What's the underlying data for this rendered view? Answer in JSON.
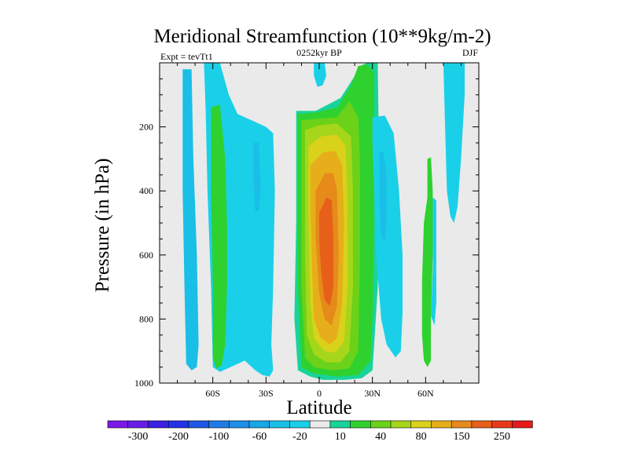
{
  "chart_data": {
    "type": "heatmap",
    "title": "Meridional Streamfunction (10**9kg/m-2)",
    "subtitle_left": "Expt = tevTt1",
    "subtitle_center": "0252kyr BP",
    "subtitle_right": "DJF",
    "xlabel": "Latitude",
    "ylabel": "Pressure (in hPa)",
    "xlim": [
      -90,
      90
    ],
    "ylim": [
      0,
      1000
    ],
    "x_ticks": [
      {
        "value": -60,
        "label": "60S"
      },
      {
        "value": -30,
        "label": "30S"
      },
      {
        "value": 0,
        "label": "0"
      },
      {
        "value": 30,
        "label": "30N"
      },
      {
        "value": 60,
        "label": "60N"
      }
    ],
    "y_ticks": [
      {
        "value": 200,
        "label": "200"
      },
      {
        "value": 400,
        "label": "400"
      },
      {
        "value": 600,
        "label": "600"
      },
      {
        "value": 800,
        "label": "800"
      },
      {
        "value": 1000,
        "label": "1000"
      }
    ],
    "levels": [
      -300,
      -250,
      -200,
      -150,
      -100,
      -80,
      -60,
      -40,
      -20,
      -10,
      10,
      20,
      40,
      60,
      80,
      100,
      150,
      200,
      250,
      300
    ],
    "colorbar_labels": [
      "-300",
      "-200",
      "-100",
      "-60",
      "-20",
      "10",
      "40",
      "80",
      "150",
      "250"
    ],
    "colors": [
      "#7b1ae6",
      "#6a1de6",
      "#3d1fe6",
      "#2233e6",
      "#1e56e6",
      "#1f7ae6",
      "#1e8ee6",
      "#19a7e6",
      "#19bfe6",
      "#1ad0e8",
      "#eaeaea",
      "#19d39a",
      "#2fd12f",
      "#6bd119",
      "#a6d61a",
      "#d9d11a",
      "#e6ae1a",
      "#e68a1a",
      "#e6601a",
      "#e63a1a",
      "#e61a1a"
    ],
    "background_color": "#eaeaea",
    "fields": [
      {
        "name": "sh-high-lat-cell",
        "level": -20,
        "points": [
          [
            -77,
            20
          ],
          [
            -72,
            20
          ],
          [
            -71,
            300
          ],
          [
            -69,
            600
          ],
          [
            -68,
            880
          ],
          [
            -69,
            950
          ],
          [
            -72,
            960
          ],
          [
            -75,
            940
          ],
          [
            -76,
            700
          ],
          [
            -77,
            400
          ]
        ]
      },
      {
        "name": "sh-mid-cell-outer",
        "level": -10,
        "points": [
          [
            -65,
            0
          ],
          [
            -56,
            0
          ],
          [
            -51,
            100
          ],
          [
            -46,
            160
          ],
          [
            -38,
            180
          ],
          [
            -30,
            200
          ],
          [
            -26,
            220
          ],
          [
            -25,
            400
          ],
          [
            -26,
            700
          ],
          [
            -27,
            880
          ],
          [
            -26,
            960
          ],
          [
            -28,
            980
          ],
          [
            -32,
            975
          ],
          [
            -36,
            960
          ],
          [
            -42,
            930
          ],
          [
            -50,
            950
          ],
          [
            -56,
            965
          ],
          [
            -60,
            950
          ],
          [
            -61,
            700
          ],
          [
            -63,
            400
          ],
          [
            -64,
            150
          ]
        ]
      },
      {
        "name": "sh-mid-cell-core",
        "level": 20,
        "points": [
          [
            -61,
            140
          ],
          [
            -56,
            130
          ],
          [
            -53,
            300
          ],
          [
            -52,
            500
          ],
          [
            -52,
            700
          ],
          [
            -53,
            880
          ],
          [
            -55,
            945
          ],
          [
            -58,
            955
          ],
          [
            -60,
            920
          ],
          [
            -60,
            700
          ],
          [
            -61,
            400
          ]
        ]
      },
      {
        "name": "sh-mid-cell-spot",
        "level": -20,
        "points": [
          [
            -37,
            250
          ],
          [
            -34,
            245
          ],
          [
            -33,
            400
          ],
          [
            -34,
            460
          ],
          [
            -36,
            465
          ],
          [
            -37,
            380
          ]
        ]
      },
      {
        "name": "hadley-10",
        "level": 10,
        "points": [
          [
            -13,
            150
          ],
          [
            -2,
            150
          ],
          [
            12,
            110
          ],
          [
            19,
            50
          ],
          [
            23,
            10
          ],
          [
            27,
            0
          ],
          [
            33,
            0
          ],
          [
            34,
            400
          ],
          [
            33,
            700
          ],
          [
            31,
            880
          ],
          [
            30,
            960
          ],
          [
            24,
            985
          ],
          [
            14,
            990
          ],
          [
            2,
            990
          ],
          [
            -5,
            980
          ],
          [
            -12,
            960
          ],
          [
            -14,
            800
          ],
          [
            -13,
            500
          ]
        ]
      },
      {
        "name": "hadley-20",
        "level": 20,
        "points": [
          [
            -12,
            160
          ],
          [
            -2,
            155
          ],
          [
            10,
            140
          ],
          [
            18,
            70
          ],
          [
            22,
            10
          ],
          [
            27,
            5
          ],
          [
            31,
            30
          ],
          [
            31,
            250
          ],
          [
            31,
            500
          ],
          [
            30,
            800
          ],
          [
            29,
            930
          ],
          [
            22,
            975
          ],
          [
            10,
            980
          ],
          [
            -3,
            970
          ],
          [
            -10,
            950
          ],
          [
            -12,
            700
          ],
          [
            -12,
            400
          ]
        ]
      },
      {
        "name": "hadley-40",
        "level": 40,
        "points": [
          [
            -10,
            180
          ],
          [
            -2,
            175
          ],
          [
            10,
            170
          ],
          [
            17,
            120
          ],
          [
            22,
            170
          ],
          [
            23,
            300
          ],
          [
            23,
            600
          ],
          [
            22,
            900
          ],
          [
            17,
            955
          ],
          [
            7,
            960
          ],
          [
            -3,
            950
          ],
          [
            -8,
            920
          ],
          [
            -10,
            700
          ],
          [
            -10,
            400
          ]
        ]
      },
      {
        "name": "hadley-60",
        "level": 60,
        "points": [
          [
            -8,
            210
          ],
          [
            0,
            195
          ],
          [
            10,
            190
          ],
          [
            18,
            230
          ],
          [
            19,
            400
          ],
          [
            19,
            700
          ],
          [
            17,
            900
          ],
          [
            12,
            935
          ],
          [
            4,
            935
          ],
          [
            -3,
            910
          ],
          [
            -7,
            850
          ],
          [
            -8,
            600
          ],
          [
            -8,
            350
          ]
        ]
      },
      {
        "name": "hadley-80",
        "level": 80,
        "points": [
          [
            -6,
            260
          ],
          [
            1,
            230
          ],
          [
            10,
            225
          ],
          [
            15,
            260
          ],
          [
            16,
            450
          ],
          [
            16,
            700
          ],
          [
            14,
            870
          ],
          [
            9,
            905
          ],
          [
            3,
            900
          ],
          [
            -3,
            860
          ],
          [
            -5,
            750
          ],
          [
            -6,
            500
          ]
        ]
      },
      {
        "name": "hadley-100",
        "level": 100,
        "points": [
          [
            -5,
            320
          ],
          [
            2,
            280
          ],
          [
            9,
            275
          ],
          [
            13,
            320
          ],
          [
            14,
            500
          ],
          [
            13,
            750
          ],
          [
            10,
            860
          ],
          [
            6,
            880
          ],
          [
            1,
            860
          ],
          [
            -3,
            800
          ],
          [
            -4,
            650
          ],
          [
            -5,
            450
          ]
        ]
      },
      {
        "name": "hadley-150",
        "level": 150,
        "points": [
          [
            -2,
            400
          ],
          [
            3,
            345
          ],
          [
            8,
            345
          ],
          [
            10,
            400
          ],
          [
            11,
            600
          ],
          [
            10,
            760
          ],
          [
            7,
            820
          ],
          [
            3,
            800
          ],
          [
            0,
            720
          ],
          [
            -2,
            550
          ]
        ]
      },
      {
        "name": "hadley-200",
        "level": 200,
        "points": [
          [
            0,
            470
          ],
          [
            4,
            420
          ],
          [
            7,
            430
          ],
          [
            8,
            550
          ],
          [
            8,
            700
          ],
          [
            6,
            760
          ],
          [
            3,
            740
          ],
          [
            1,
            650
          ],
          [
            0,
            550
          ]
        ]
      },
      {
        "name": "nh-subtropic-outer",
        "level": -10,
        "points": [
          [
            30,
            170
          ],
          [
            37,
            165
          ],
          [
            42,
            220
          ],
          [
            45,
            400
          ],
          [
            47,
            600
          ],
          [
            47,
            780
          ],
          [
            46,
            900
          ],
          [
            43,
            920
          ],
          [
            38,
            880
          ],
          [
            35,
            800
          ],
          [
            32,
            600
          ],
          [
            31,
            400
          ],
          [
            30,
            250
          ]
        ]
      },
      {
        "name": "nh-subtropic-core",
        "level": -20,
        "points": [
          [
            34,
            280
          ],
          [
            36,
            275
          ],
          [
            38,
            350
          ],
          [
            38,
            500
          ],
          [
            37,
            560
          ],
          [
            35,
            540
          ],
          [
            34,
            450
          ]
        ]
      },
      {
        "name": "nh-60-green",
        "level": 20,
        "points": [
          [
            61,
            300
          ],
          [
            63,
            295
          ],
          [
            64,
            400
          ],
          [
            64,
            600
          ],
          [
            63,
            800
          ],
          [
            63,
            930
          ],
          [
            61,
            950
          ],
          [
            59,
            930
          ],
          [
            58,
            850
          ],
          [
            58,
            680
          ],
          [
            59,
            500
          ],
          [
            61,
            420
          ]
        ]
      },
      {
        "name": "nh-60-blue",
        "level": -10,
        "points": [
          [
            64,
            420
          ],
          [
            66,
            430
          ],
          [
            66,
            600
          ],
          [
            66,
            750
          ],
          [
            65,
            820
          ],
          [
            63,
            790
          ],
          [
            64,
            650
          ]
        ]
      },
      {
        "name": "nh-polar",
        "level": -10,
        "points": [
          [
            70,
            0
          ],
          [
            82,
            0
          ],
          [
            82,
            100
          ],
          [
            80,
            300
          ],
          [
            78,
            450
          ],
          [
            76,
            500
          ],
          [
            74,
            480
          ],
          [
            72,
            400
          ],
          [
            71,
            200
          ]
        ]
      },
      {
        "name": "top-blob",
        "level": -10,
        "points": [
          [
            -3,
            0
          ],
          [
            3,
            0
          ],
          [
            4,
            40
          ],
          [
            2,
            70
          ],
          [
            -1,
            75
          ],
          [
            -3,
            40
          ]
        ]
      }
    ]
  }
}
